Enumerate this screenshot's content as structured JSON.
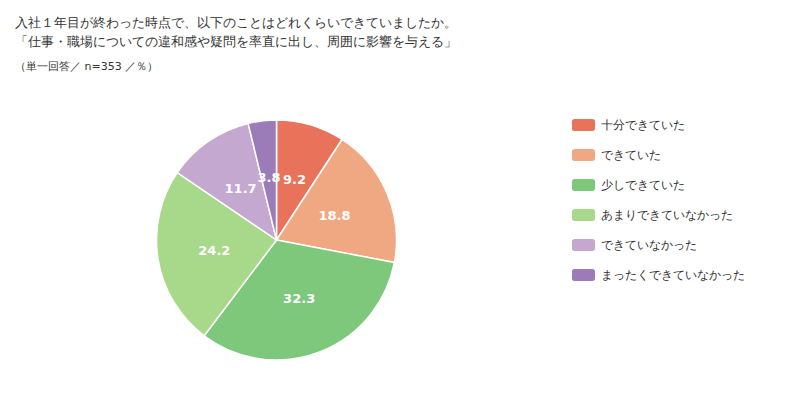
{
  "chart_data": {
    "type": "pie",
    "title": "入社１年目が終わった時点で、以下のことはどれくらいできていましたか。\n「仕事・職場についての違和感や疑問を率直に出し、周囲に影響を与える」",
    "subtitle": "（単一回答／ n=353 ／％）",
    "categories": [
      "十分できていた",
      "できていた",
      "少しできていた",
      "あまりできていなかった",
      "できていなかった",
      "まったくできていなかった"
    ],
    "values": [
      9.2,
      18.8,
      32.3,
      24.2,
      11.7,
      3.8
    ],
    "colors": [
      "#E8735A",
      "#F0A882",
      "#7DC87A",
      "#A8D88A",
      "#C4A8D0",
      "#9B7BB8"
    ],
    "data_labels": true,
    "legend": "right"
  }
}
